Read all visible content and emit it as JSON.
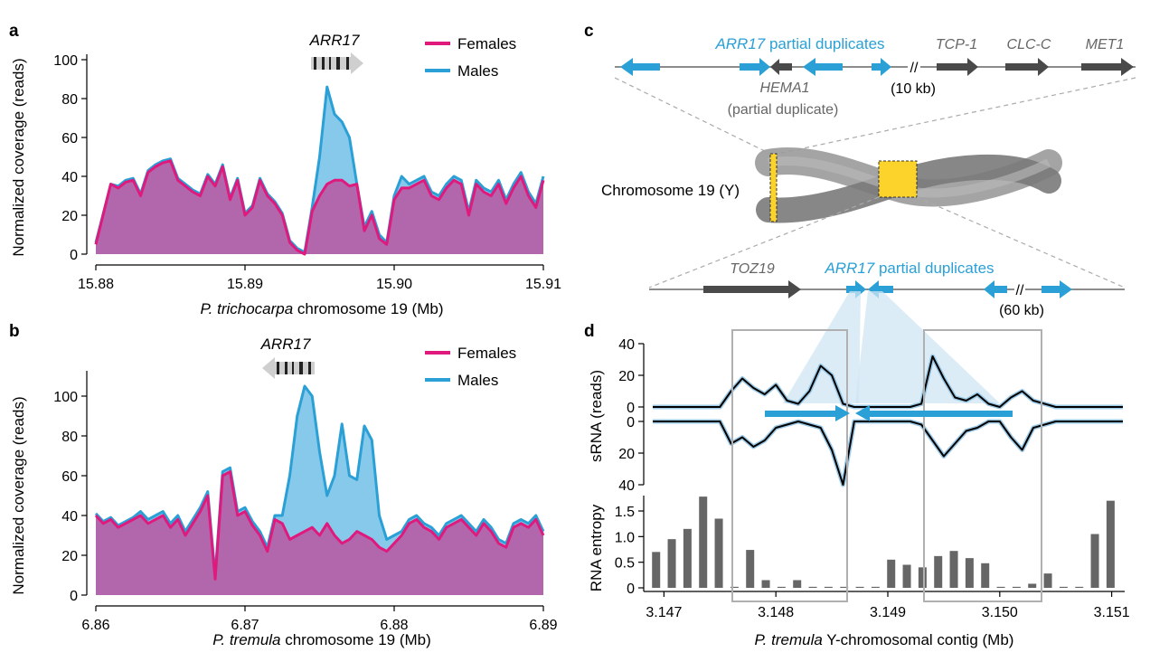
{
  "panels": {
    "a": "a",
    "b": "b",
    "c": "c",
    "d": "d"
  },
  "colors": {
    "females": "#e0197d",
    "males": "#2aa0d6",
    "overlap_fill": "#b267ad",
    "males_fill": "#87c9ea",
    "gene_dark": "#4a4a4a",
    "gene_blue": "#2aa0d6",
    "chromosome_yellow": "#fcd32a",
    "bar_gray": "#666666"
  },
  "chart_data": [
    {
      "id": "a",
      "type": "area",
      "xlabel_italic": "P. trichocarpa",
      "xlabel_rest": " chromosome 19 (Mb)",
      "ylabel": "Normalized coverage (reads)",
      "xlim": [
        15.88,
        15.91
      ],
      "ylim": [
        0,
        100
      ],
      "xticks": [
        "15.88",
        "15.89",
        "15.90",
        "15.91"
      ],
      "yticks": [
        "0",
        "20",
        "40",
        "60",
        "80",
        "100"
      ],
      "gene_label": "ARR17",
      "gene_direction": "right",
      "legend": [
        "Females",
        "Males"
      ],
      "x": [
        15.88,
        15.881,
        15.8815,
        15.882,
        15.8825,
        15.883,
        15.8835,
        15.884,
        15.8845,
        15.885,
        15.8855,
        15.886,
        15.8865,
        15.887,
        15.8875,
        15.888,
        15.8885,
        15.889,
        15.8895,
        15.89,
        15.8905,
        15.891,
        15.8915,
        15.892,
        15.8925,
        15.893,
        15.8935,
        15.894,
        15.8945,
        15.895,
        15.8955,
        15.896,
        15.8965,
        15.897,
        15.8975,
        15.898,
        15.8985,
        15.899,
        15.8995,
        15.9,
        15.9005,
        15.901,
        15.9015,
        15.902,
        15.9025,
        15.903,
        15.9035,
        15.904,
        15.9045,
        15.905,
        15.9055,
        15.906,
        15.9065,
        15.907,
        15.9075,
        15.908,
        15.9085,
        15.909,
        15.9095,
        15.91
      ],
      "series": [
        {
          "name": "Females",
          "values": [
            5,
            36,
            34,
            37,
            38,
            30,
            42,
            45,
            47,
            48,
            38,
            35,
            32,
            30,
            40,
            35,
            45,
            28,
            38,
            20,
            24,
            38,
            30,
            26,
            20,
            6,
            2,
            0,
            22,
            30,
            36,
            38,
            38,
            35,
            36,
            12,
            20,
            8,
            5,
            28,
            34,
            34,
            36,
            38,
            30,
            28,
            34,
            38,
            36,
            20,
            36,
            32,
            30,
            36,
            26,
            34,
            40,
            30,
            24,
            38
          ]
        },
        {
          "name": "Males",
          "values": [
            6,
            36,
            35,
            38,
            39,
            31,
            43,
            46,
            48,
            49,
            39,
            36,
            33,
            31,
            41,
            36,
            46,
            29,
            39,
            21,
            25,
            39,
            31,
            27,
            21,
            7,
            3,
            1,
            24,
            50,
            86,
            72,
            68,
            60,
            36,
            14,
            22,
            10,
            6,
            30,
            40,
            36,
            38,
            40,
            32,
            30,
            36,
            40,
            38,
            22,
            38,
            34,
            32,
            38,
            28,
            36,
            42,
            32,
            26,
            40
          ]
        }
      ]
    },
    {
      "id": "b",
      "type": "area",
      "xlabel_italic": "P. tremula",
      "xlabel_rest": " chromosome 19 (Mb)",
      "ylabel": "Normalized coverage (reads)",
      "xlim": [
        6.86,
        6.89
      ],
      "ylim": [
        0,
        110
      ],
      "xticks": [
        "6.86",
        "6.87",
        "6.88",
        "6.89"
      ],
      "yticks": [
        "0",
        "20",
        "40",
        "60",
        "80",
        "100"
      ],
      "gene_label": "ARR17",
      "gene_direction": "left",
      "legend": [
        "Females",
        "Males"
      ],
      "x": [
        6.86,
        6.8605,
        6.861,
        6.8615,
        6.862,
        6.8625,
        6.863,
        6.8635,
        6.864,
        6.8645,
        6.865,
        6.8655,
        6.866,
        6.8665,
        6.867,
        6.8675,
        6.868,
        6.8685,
        6.869,
        6.8695,
        6.87,
        6.8705,
        6.871,
        6.8715,
        6.872,
        6.8725,
        6.873,
        6.8735,
        6.874,
        6.8745,
        6.875,
        6.8755,
        6.876,
        6.8765,
        6.877,
        6.8775,
        6.878,
        6.8785,
        6.879,
        6.8795,
        6.88,
        6.8805,
        6.881,
        6.8815,
        6.882,
        6.8825,
        6.883,
        6.8835,
        6.884,
        6.8845,
        6.885,
        6.8855,
        6.886,
        6.8865,
        6.887,
        6.8875,
        6.888,
        6.8885,
        6.889,
        6.8895,
        6.89
      ],
      "series": [
        {
          "name": "Females",
          "values": [
            40,
            36,
            38,
            34,
            36,
            38,
            40,
            36,
            38,
            40,
            34,
            38,
            30,
            36,
            42,
            50,
            8,
            60,
            62,
            40,
            42,
            35,
            30,
            22,
            38,
            36,
            28,
            30,
            32,
            34,
            30,
            36,
            30,
            26,
            28,
            32,
            30,
            28,
            24,
            22,
            26,
            30,
            36,
            38,
            34,
            32,
            28,
            34,
            36,
            38,
            34,
            30,
            36,
            32,
            26,
            24,
            34,
            36,
            34,
            38,
            30
          ]
        },
        {
          "name": "Males",
          "values": [
            41,
            37,
            39,
            35,
            37,
            39,
            42,
            38,
            40,
            42,
            36,
            40,
            32,
            38,
            44,
            52,
            10,
            62,
            64,
            42,
            44,
            37,
            32,
            24,
            40,
            40,
            60,
            90,
            105,
            100,
            72,
            50,
            60,
            86,
            60,
            58,
            85,
            78,
            40,
            28,
            30,
            32,
            38,
            40,
            36,
            34,
            30,
            36,
            38,
            40,
            36,
            32,
            38,
            34,
            28,
            26,
            36,
            38,
            36,
            40,
            32
          ]
        }
      ]
    },
    {
      "id": "d-sRNA",
      "type": "line",
      "ylabel": "sRNA (reads)",
      "yticks_top": [
        "40",
        "20",
        "0"
      ],
      "yticks_bottom": [
        "0",
        "20",
        "40"
      ],
      "ylim_top": [
        0,
        40
      ],
      "ylim_bottom": [
        0,
        40
      ],
      "xlim": [
        3.1469,
        3.1511
      ],
      "x": [
        3.1469,
        3.1472,
        3.1475,
        3.1476,
        3.1477,
        3.1478,
        3.1479,
        3.148,
        3.1481,
        3.1482,
        3.1483,
        3.1484,
        3.1485,
        3.1486,
        3.1487,
        3.1488,
        3.1489,
        3.149,
        3.1491,
        3.1492,
        3.1493,
        3.1494,
        3.1495,
        3.1496,
        3.1497,
        3.1498,
        3.1499,
        3.15,
        3.1501,
        3.1502,
        3.1503,
        3.1505,
        3.1508,
        3.1511
      ],
      "plus_strand": [
        0,
        0,
        0,
        10,
        18,
        12,
        8,
        14,
        4,
        2,
        10,
        26,
        20,
        2,
        0,
        0,
        0,
        0,
        0,
        0,
        2,
        32,
        18,
        6,
        4,
        8,
        2,
        0,
        6,
        10,
        4,
        0,
        0,
        0
      ],
      "minus_strand": [
        0,
        0,
        0,
        14,
        10,
        16,
        12,
        4,
        2,
        0,
        2,
        4,
        18,
        40,
        0,
        0,
        0,
        0,
        0,
        0,
        2,
        12,
        22,
        14,
        6,
        4,
        0,
        0,
        10,
        18,
        4,
        0,
        0,
        0
      ]
    },
    {
      "id": "d-entropy",
      "type": "bar",
      "ylabel": "RNA entropy",
      "xlabel_italic": "P. tremula",
      "xlabel_rest": " Y-chromosomal contig (Mb)",
      "xlim": [
        3.1469,
        3.1511
      ],
      "ylim": [
        0,
        1.8
      ],
      "xticks": [
        "3.147",
        "3.148",
        "3.149",
        "3.150",
        "3.151"
      ],
      "yticks": [
        "0",
        "0.5",
        "1.0",
        "1.5"
      ],
      "x": [
        3.14693,
        3.14707,
        3.14721,
        3.14735,
        3.14749,
        3.14763,
        3.14777,
        3.14791,
        3.14805,
        3.14819,
        3.14833,
        3.14847,
        3.14861,
        3.14875,
        3.14889,
        3.14903,
        3.14917,
        3.14931,
        3.14945,
        3.14959,
        3.14973,
        3.14987,
        3.15001,
        3.15015,
        3.15029,
        3.15043,
        3.15057,
        3.15071,
        3.15085,
        3.15099
      ],
      "values": [
        0.7,
        0.95,
        1.15,
        1.78,
        1.35,
        0.02,
        0.74,
        0.15,
        0.02,
        0.15,
        0.02,
        0.02,
        0.02,
        0.02,
        0.02,
        0.55,
        0.45,
        0.4,
        0.62,
        0.72,
        0.58,
        0.48,
        0.02,
        0.02,
        0.08,
        0.28,
        0.02,
        0.02,
        1.05,
        1.7
      ]
    }
  ],
  "panel_c": {
    "top_gene_blue_label_italic": "ARR17",
    "top_gene_blue_label_rest": " partial duplicates",
    "top_tcp": "TCP-1",
    "top_clc": "CLC-C",
    "top_met": "MET1",
    "hema1": "HEMA1",
    "hema1_sub": "(partial duplicate)",
    "top_gap": "(10 kb)",
    "chromosome_label": "Chromosome 19 (Y)",
    "bottom_toz": "TOZ19",
    "bottom_blue_italic": "ARR17",
    "bottom_blue_rest": " partial duplicates",
    "bottom_gap": "(60 kb)",
    "break_mark": "//"
  }
}
